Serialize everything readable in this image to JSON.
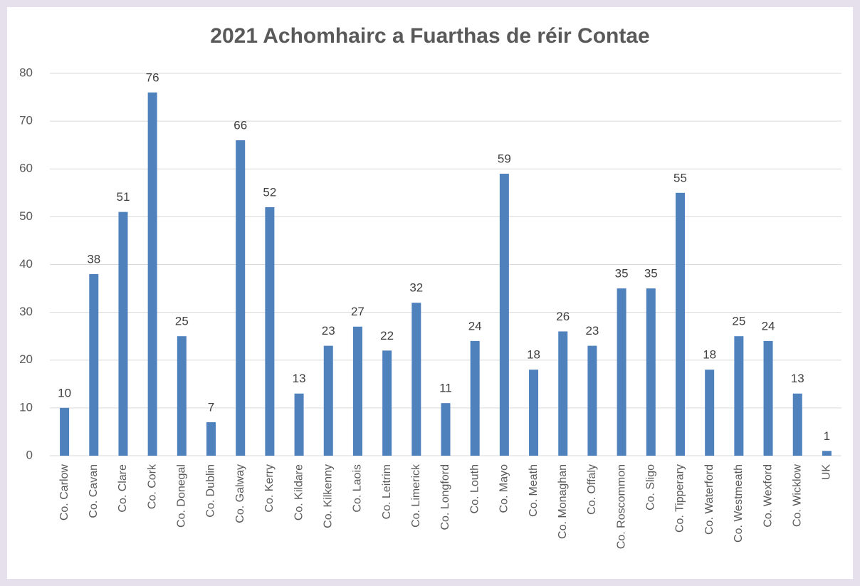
{
  "chart_data": {
    "type": "bar",
    "title": "2021 Achomhairc a Fuarthas de réir Contae",
    "categories": [
      "Co. Carlow",
      "Co. Cavan",
      "Co. Clare",
      "Co. Cork",
      "Co. Donegal",
      "Co. Dublin",
      "Co. Galway",
      "Co. Kerry",
      "Co. Kildare",
      "Co. Kilkenny",
      "Co. Laois",
      "Co. Leitrim",
      "Co. Limerick",
      "Co. Longford",
      "Co. Louth",
      "Co. Mayo",
      "Co. Meath",
      "Co. Monaghan",
      "Co. Offaly",
      "Co. Roscommon",
      "Co. Sligo",
      "Co. Tipperary",
      "Co. Waterford",
      "Co. Westmeath",
      "Co. Wexford",
      "Co. Wicklow",
      "UK"
    ],
    "values": [
      10,
      38,
      51,
      76,
      25,
      7,
      66,
      52,
      13,
      23,
      27,
      22,
      32,
      11,
      24,
      59,
      18,
      26,
      23,
      35,
      35,
      55,
      18,
      25,
      24,
      13,
      1
    ],
    "color": "#4f81bd",
    "ylim": [
      0,
      80
    ],
    "yticks": [
      0,
      10,
      20,
      30,
      40,
      50,
      60,
      70,
      80
    ],
    "grid": true
  }
}
